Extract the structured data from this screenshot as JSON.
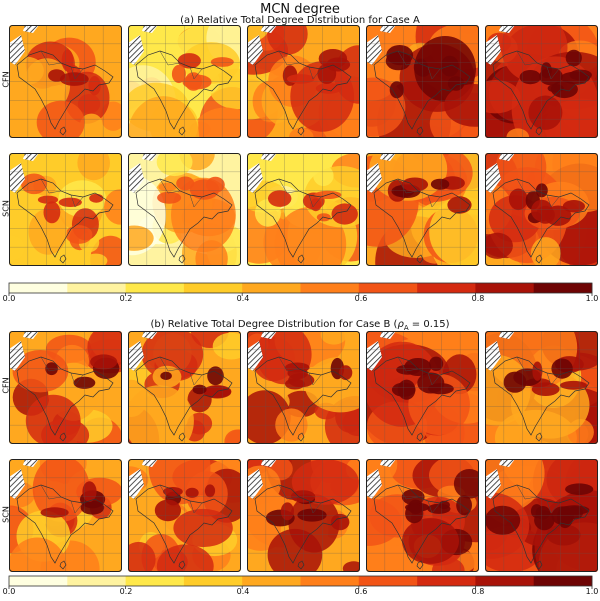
{
  "title": "MCN degree",
  "panels": [
    {
      "id": "a",
      "subtitle": "(a) Relative Total Degree Distribution for Case A",
      "rows": [
        "CFN",
        "SCN"
      ],
      "intensity": [
        [
          0.55,
          0.42,
          0.55,
          0.72,
          0.74
        ],
        [
          0.5,
          0.34,
          0.44,
          0.58,
          0.62
        ]
      ]
    },
    {
      "id": "b",
      "subtitle_prefix": "(b) Relative Total Degree Distribution for Case B (",
      "subtitle_rho": "ρ",
      "subtitle_sub": "A",
      "subtitle_suffix": " = 0.15)",
      "rows": [
        "CFN",
        "SCN"
      ],
      "intensity": [
        [
          0.62,
          0.6,
          0.62,
          0.7,
          0.64
        ],
        [
          0.6,
          0.58,
          0.62,
          0.74,
          0.78
        ]
      ]
    }
  ],
  "colorbar": {
    "ticks": [
      "0.0",
      "0.2",
      "0.4",
      "0.6",
      "0.8",
      "1.0"
    ],
    "levels": [
      0,
      0.1,
      0.2,
      0.3,
      0.4,
      0.5,
      0.6,
      0.7,
      0.8,
      0.9,
      1.0
    ],
    "colors": [
      "#ffffe0",
      "#fff3a0",
      "#ffe84a",
      "#ffcc29",
      "#ffa81f",
      "#ff7f1a",
      "#f25416",
      "#d42a10",
      "#a81208",
      "#6e0404"
    ]
  },
  "chart_data": {
    "type": "heatmap",
    "title": "MCN degree",
    "colorbar_range": [
      0.0,
      1.0
    ],
    "panels": [
      "(a) Relative Total Degree Distribution for Case A",
      "(b) Relative Total Degree Distribution for Case B (ρA = 0.15)"
    ],
    "row_labels": [
      "CFN",
      "SCN"
    ]
  }
}
